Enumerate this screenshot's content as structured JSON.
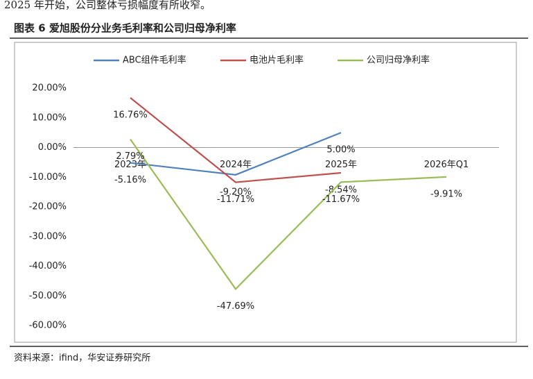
{
  "intro_text": "2025 年开始，公司整体亏损幅度有所收窄。",
  "figure_title": "图表 6  爱旭股份分业务毛利率和公司归母净利率",
  "source": "资料来源：ifind，华安证券研究所",
  "chart_data": {
    "type": "line",
    "categories": [
      "2023年",
      "2024年",
      "2025年",
      "2026年Q1"
    ],
    "series": [
      {
        "name": "ABC组件毛利率",
        "color": "#4f81bd",
        "values": [
          -5.16,
          -9.2,
          5.0,
          null
        ],
        "value_labels": [
          "-5.16%",
          "-9.20%",
          "5.00%",
          null
        ]
      },
      {
        "name": "电池片毛利率",
        "color": "#c0504d",
        "values": [
          16.76,
          -11.71,
          -8.54,
          null
        ],
        "value_labels": [
          "16.76%",
          "-11.71%",
          "-8.54%",
          null
        ]
      },
      {
        "name": "公司归母净利率",
        "color": "#9bbb59",
        "values": [
          2.79,
          -47.69,
          -11.67,
          -9.91
        ],
        "value_labels": [
          "2.79%",
          "-47.69%",
          "-11.67%",
          "-9.91%"
        ]
      }
    ],
    "ylim": [
      -60,
      20
    ],
    "yticks": [
      {
        "value": -60,
        "label": "-60.00%"
      },
      {
        "value": -50,
        "label": "-50.00%"
      },
      {
        "value": -40,
        "label": "-40.00%"
      },
      {
        "value": -30,
        "label": "-30.00%"
      },
      {
        "value": -20,
        "label": "-20.00%"
      },
      {
        "value": -10,
        "label": "-10.00%"
      },
      {
        "value": 0,
        "label": "0.00%"
      },
      {
        "value": 10,
        "label": "10.00%"
      },
      {
        "value": 20,
        "label": "20.00%"
      }
    ],
    "legend": "top"
  }
}
